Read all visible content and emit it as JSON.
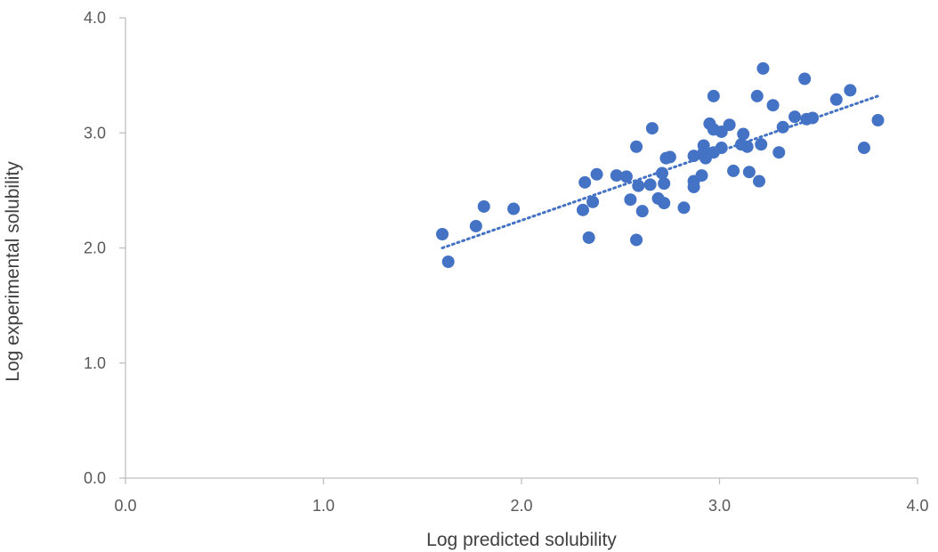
{
  "chart_data": {
    "type": "scatter",
    "xlabel": "Log predicted solubility",
    "ylabel": "Log experimental solubility",
    "xlim": [
      0,
      4
    ],
    "ylim": [
      0,
      4
    ],
    "x_ticks": [
      "0.0",
      "1.0",
      "2.0",
      "3.0",
      "4.0"
    ],
    "y_ticks": [
      "0.0",
      "1.0",
      "2.0",
      "3.0",
      "4.0"
    ],
    "grid": false,
    "marker_color": "#4472c4",
    "trendline": {
      "type": "linear",
      "x": [
        1.6,
        3.8
      ],
      "y": [
        2.0,
        3.32
      ],
      "style": "dotted"
    },
    "points": [
      [
        1.6,
        2.12
      ],
      [
        1.63,
        1.88
      ],
      [
        1.77,
        2.19
      ],
      [
        1.81,
        2.36
      ],
      [
        1.96,
        2.34
      ],
      [
        2.31,
        2.33
      ],
      [
        2.32,
        2.57
      ],
      [
        2.34,
        2.09
      ],
      [
        2.36,
        2.4
      ],
      [
        2.38,
        2.64
      ],
      [
        2.48,
        2.63
      ],
      [
        2.53,
        2.62
      ],
      [
        2.55,
        2.42
      ],
      [
        2.58,
        2.88
      ],
      [
        2.58,
        2.07
      ],
      [
        2.59,
        2.54
      ],
      [
        2.61,
        2.32
      ],
      [
        2.65,
        2.55
      ],
      [
        2.66,
        3.04
      ],
      [
        2.69,
        2.43
      ],
      [
        2.71,
        2.65
      ],
      [
        2.72,
        2.56
      ],
      [
        2.72,
        2.39
      ],
      [
        2.73,
        2.78
      ],
      [
        2.75,
        2.79
      ],
      [
        2.82,
        2.35
      ],
      [
        2.87,
        2.8
      ],
      [
        2.87,
        2.58
      ],
      [
        2.87,
        2.53
      ],
      [
        2.91,
        2.63
      ],
      [
        2.92,
        2.89
      ],
      [
        2.92,
        2.83
      ],
      [
        2.93,
        2.78
      ],
      [
        2.95,
        3.08
      ],
      [
        2.97,
        2.83
      ],
      [
        2.97,
        3.03
      ],
      [
        2.97,
        3.32
      ],
      [
        3.01,
        3.01
      ],
      [
        3.01,
        2.87
      ],
      [
        3.05,
        3.07
      ],
      [
        3.07,
        2.67
      ],
      [
        3.11,
        2.9
      ],
      [
        3.12,
        2.99
      ],
      [
        3.14,
        2.88
      ],
      [
        3.15,
        2.66
      ],
      [
        3.19,
        3.32
      ],
      [
        3.2,
        2.58
      ],
      [
        3.21,
        2.9
      ],
      [
        3.22,
        3.56
      ],
      [
        3.27,
        3.24
      ],
      [
        3.3,
        2.83
      ],
      [
        3.32,
        3.05
      ],
      [
        3.38,
        3.14
      ],
      [
        3.43,
        3.47
      ],
      [
        3.44,
        3.12
      ],
      [
        3.47,
        3.13
      ],
      [
        3.59,
        3.29
      ],
      [
        3.66,
        3.37
      ],
      [
        3.73,
        2.87
      ],
      [
        3.8,
        3.11
      ]
    ]
  }
}
